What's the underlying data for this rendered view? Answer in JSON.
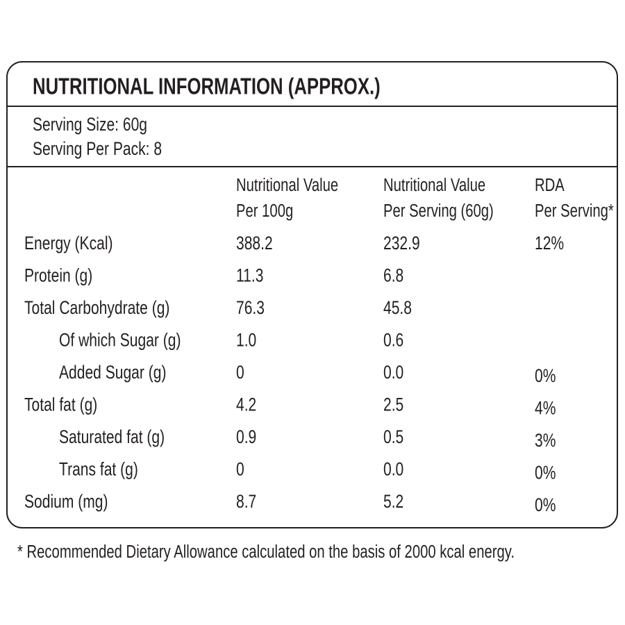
{
  "title": "NUTRITIONAL INFORMATION (APPROX.)",
  "serving": [
    "Serving Size: 60g",
    "Serving Per Pack: 8"
  ],
  "table": {
    "headers": [
      [
        "Nutritional Value",
        "Per 100g"
      ],
      [
        "Nutritional Value",
        "Per Serving (60g)"
      ],
      [
        "RDA",
        "Per Serving*"
      ]
    ],
    "rows": [
      {
        "label": "Energy (Kcal)",
        "indent": false,
        "cells": [
          "388.2",
          "232.9",
          "12%"
        ]
      },
      {
        "label": "Protein (g)",
        "indent": false,
        "cells": [
          "11.3",
          "6.8",
          null
        ]
      },
      {
        "label": "Total Carbohydrate (g)",
        "indent": false,
        "cells": [
          "76.3",
          "45.8",
          null
        ]
      },
      {
        "label": "Of which Sugar (g)",
        "indent": true,
        "cells": [
          "1.0",
          "0.6",
          null
        ]
      },
      {
        "label": "Added Sugar (g)",
        "indent": true,
        "cells": [
          "0",
          "0.0",
          "0%"
        ]
      },
      {
        "label": "Total fat (g)",
        "indent": false,
        "cells": [
          "4.2",
          "2.5",
          "4%"
        ]
      },
      {
        "label": "Saturated fat (g)",
        "indent": true,
        "cells": [
          "0.9",
          "0.5",
          "3%"
        ]
      },
      {
        "label": "Trans fat (g)",
        "indent": true,
        "cells": [
          "0",
          "0.0",
          "0%"
        ]
      },
      {
        "label": "Sodium (mg)",
        "indent": false,
        "cells": [
          "8.7",
          "5.2",
          "0%"
        ]
      }
    ]
  },
  "footnote": "* Recommended Dietary Allowance calculated on the basis of 2000 kcal energy."
}
